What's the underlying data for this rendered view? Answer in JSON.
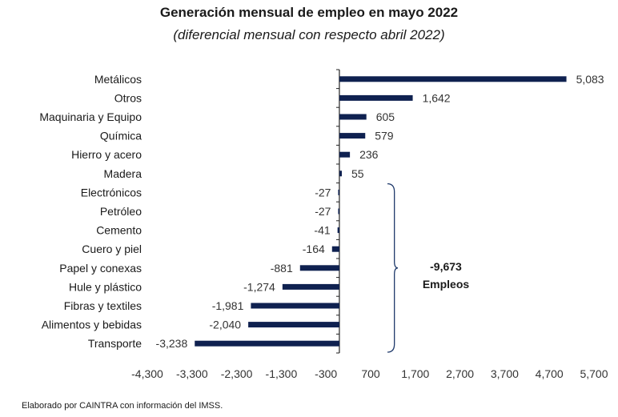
{
  "chart_data": {
    "type": "bar",
    "orientation": "horizontal",
    "title": "Generación mensual de empleo en mayo 2022",
    "subtitle": "(diferencial mensual con respecto abril 2022)",
    "categories": [
      "Metálicos",
      "Otros",
      "Maquinaria y Equipo",
      "Química",
      "Hierro y acero",
      "Madera",
      "Electrónicos",
      "Petróleo",
      "Cemento",
      "Cuero y piel",
      "Papel y conexas",
      "Hule y plástico",
      "Fibras y textiles",
      "Alimentos y bebidas",
      "Transporte"
    ],
    "values": [
      5083,
      1642,
      605,
      579,
      236,
      55,
      -27,
      -27,
      -41,
      -164,
      -881,
      -1274,
      -1981,
      -2040,
      -3238
    ],
    "value_labels": [
      "5,083",
      "1,642",
      "605",
      "579",
      "236",
      "55",
      "-27",
      "-27",
      "-41",
      "-164",
      "-881",
      "-1,274",
      "-1,981",
      "-2,040",
      "-3,238"
    ],
    "xlim": [
      -4300,
      5700
    ],
    "xticks": [
      -4300,
      -3300,
      -2300,
      -1300,
      -300,
      700,
      1700,
      2700,
      3700,
      4700,
      5700
    ],
    "xtick_labels": [
      "-4,300",
      "-3,300",
      "-2,300",
      "-1,300",
      "-300",
      "700",
      "1,700",
      "2,700",
      "3,700",
      "4,700",
      "5,700"
    ],
    "bar_color": "#0f2150",
    "grid": false,
    "annotation": {
      "brace_from": "Electrónicos",
      "brace_to": "Transporte",
      "value": "-9,673",
      "unit": "Empleos"
    }
  },
  "footer": "Elaborado por CAINTRA con información del IMSS."
}
